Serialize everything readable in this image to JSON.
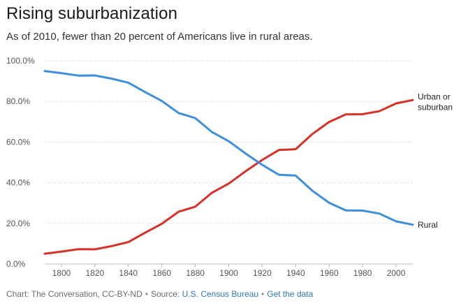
{
  "header": {
    "title": "Rising suburbanization",
    "subtitle": "As of 2010, fewer than 20 percent of Americans live in rural areas."
  },
  "footer": {
    "credit": "Chart: The Conversation, CC-BY-ND",
    "source_prefix": "Source:",
    "source_link": "U.S. Census Bureau",
    "data_link": "Get the data"
  },
  "chart_data": {
    "type": "line",
    "title": "Rising suburbanization",
    "xlabel": "",
    "ylabel": "",
    "x": [
      1790,
      1800,
      1810,
      1820,
      1830,
      1840,
      1850,
      1860,
      1870,
      1880,
      1890,
      1900,
      1910,
      1920,
      1930,
      1940,
      1950,
      1960,
      1970,
      1980,
      1990,
      2000,
      2010
    ],
    "series": [
      {
        "name": "Urban or suburban",
        "label_lines": [
          "Urban or",
          "suburban"
        ],
        "color": "#d63027",
        "values": [
          5.1,
          6.1,
          7.3,
          7.2,
          8.8,
          10.8,
          15.4,
          19.8,
          25.7,
          28.2,
          35.1,
          39.6,
          45.6,
          51.2,
          56.1,
          56.5,
          64.0,
          69.9,
          73.6,
          73.7,
          75.2,
          79.0,
          80.7
        ]
      },
      {
        "name": "Rural",
        "label_lines": [
          "Rural"
        ],
        "color": "#3d8fd9",
        "values": [
          94.9,
          93.9,
          92.7,
          92.8,
          91.2,
          89.2,
          84.6,
          80.2,
          74.3,
          71.8,
          64.9,
          60.4,
          54.4,
          48.8,
          43.9,
          43.5,
          36.0,
          30.1,
          26.4,
          26.3,
          24.8,
          21.0,
          19.3
        ]
      }
    ],
    "xticks": [
      1800,
      1820,
      1840,
      1860,
      1880,
      1900,
      1920,
      1940,
      1960,
      1980,
      2000
    ],
    "yticks": [
      "0.0%",
      "20.0%",
      "40.0%",
      "60.0%",
      "80.0%",
      "100.0%"
    ],
    "ytick_values": [
      0,
      20,
      40,
      60,
      80,
      100
    ],
    "xlim": [
      1790,
      2010
    ],
    "ylim": [
      0,
      100
    ],
    "grid": true,
    "legend": "end-of-line labels (right)"
  }
}
